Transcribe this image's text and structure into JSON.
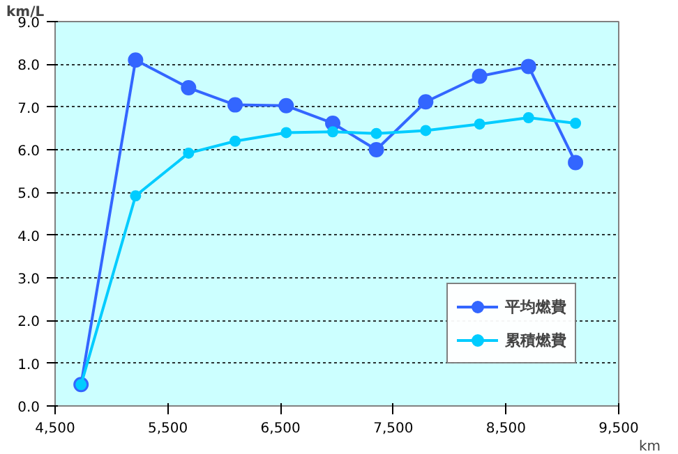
{
  "chart_data": {
    "type": "line",
    "ylabel": "km/L",
    "xlabel": "km",
    "x": [
      4730,
      5214,
      5684,
      6097,
      6550,
      6963,
      7350,
      7788,
      8266,
      8700,
      9117
    ],
    "series": [
      {
        "name": "平均燃費",
        "color": "#3366ff",
        "marker": "circle",
        "values": [
          0.5,
          8.1,
          7.45,
          7.05,
          7.03,
          6.62,
          6.0,
          7.12,
          7.72,
          7.95,
          5.7
        ]
      },
      {
        "name": "累積燃費",
        "color": "#00ccff",
        "marker": "circle",
        "values": [
          0.5,
          4.92,
          5.92,
          6.2,
          6.4,
          6.42,
          6.38,
          6.45,
          6.6,
          6.75,
          6.62
        ]
      }
    ],
    "xlim": [
      4500,
      9500
    ],
    "xticks": [
      {
        "value": 4500,
        "label": "4,500"
      },
      {
        "value": 5500,
        "label": "5,500"
      },
      {
        "value": 6500,
        "label": "6,500"
      },
      {
        "value": 7500,
        "label": "7,500"
      },
      {
        "value": 8500,
        "label": "8,500"
      },
      {
        "value": 9500,
        "label": "9,500"
      }
    ],
    "ylim": [
      0,
      9
    ],
    "yticks": [
      {
        "value": 0,
        "label": "0.0"
      },
      {
        "value": 1,
        "label": "1.0"
      },
      {
        "value": 2,
        "label": "2.0"
      },
      {
        "value": 3,
        "label": "3.0"
      },
      {
        "value": 4,
        "label": "4.0"
      },
      {
        "value": 5,
        "label": "5.0"
      },
      {
        "value": 6,
        "label": "6.0"
      },
      {
        "value": 7,
        "label": "7.0"
      },
      {
        "value": 8,
        "label": "8.0"
      },
      {
        "value": 9,
        "label": "9.0"
      }
    ],
    "grid": "y",
    "legend": "bottom right",
    "line_style": "solid"
  }
}
